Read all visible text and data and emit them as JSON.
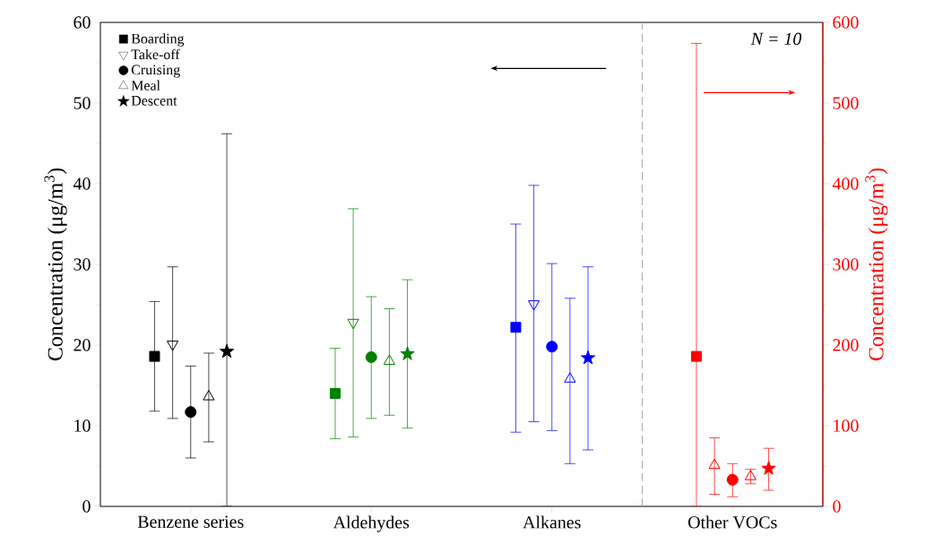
{
  "chart_data": {
    "type": "scatter",
    "categories": [
      "Benzene series",
      "Aldehydes",
      "Alkanes",
      "Other VOCs"
    ],
    "ylabel": "Concentration (μg/m$^{3}$)",
    "y2label": "Concentration (μg/m$^{3}$)",
    "ylim": [
      0,
      60
    ],
    "yticks": [
      0,
      10,
      20,
      30,
      40,
      50,
      60
    ],
    "y2lim": [
      0,
      600
    ],
    "y2ticks": [
      0,
      100,
      200,
      300,
      400,
      500,
      600
    ],
    "legend": "top left",
    "annotations": [
      "N = 10"
    ],
    "series": [
      {
        "name": "Boarding",
        "marker": "square",
        "color": "#000000",
        "colors": [
          "#000000",
          "#008000",
          "#0000ff",
          null
        ],
        "values": [
          18.6,
          14.0,
          22.2,
          null
        ],
        "errors": [
          [
            11.8,
            25.4
          ],
          [
            8.4,
            19.6
          ],
          [
            9.2,
            35.0
          ],
          null
        ]
      },
      {
        "name": "Take-off",
        "marker": "triangle-down",
        "color": "#000000",
        "colors": [
          "#000000",
          "#008000",
          "#0000ff",
          null
        ],
        "values": [
          20.1,
          22.8,
          25.1,
          null
        ],
        "errors": [
          [
            10.9,
            29.7
          ],
          [
            8.6,
            36.9
          ],
          [
            10.5,
            39.8
          ],
          null
        ]
      },
      {
        "name": "Cruising",
        "marker": "circle",
        "color": "#000000",
        "colors": [
          "#000000",
          "#008000",
          "#0000ff",
          null
        ],
        "values": [
          11.7,
          18.5,
          19.8,
          null
        ],
        "errors": [
          [
            6.0,
            17.4
          ],
          [
            10.9,
            26.0
          ],
          [
            9.4,
            30.1
          ],
          null
        ]
      },
      {
        "name": "Meal",
        "marker": "triangle",
        "color": "#000000",
        "colors": [
          "#000000",
          "#008000",
          "#0000ff",
          null
        ],
        "values": [
          13.6,
          18.0,
          15.8,
          null
        ],
        "errors": [
          [
            8.0,
            19.0
          ],
          [
            11.3,
            24.5
          ],
          [
            5.3,
            25.8
          ],
          null
        ]
      },
      {
        "name": "Descent",
        "marker": "star",
        "color": "#000000",
        "colors": [
          "#000000",
          "#008000",
          "#0000ff",
          null
        ],
        "values": [
          19.2,
          18.9,
          18.4,
          null
        ],
        "errors": [
          [
            0,
            46.2
          ],
          [
            9.7,
            28.1
          ],
          [
            7.0,
            29.7
          ],
          null
        ]
      },
      {
        "axis": "y2",
        "marker": "square",
        "color": "#ff0000",
        "values": [
          null,
          null,
          null,
          186
        ],
        "errors": [
          null,
          null,
          null,
          [
            0,
            574
          ]
        ]
      },
      {
        "axis": "y2",
        "marker": "triangle",
        "color": "#ff0000",
        "values": [
          null,
          null,
          null,
          51
        ],
        "errors": [
          null,
          null,
          null,
          [
            15,
            85
          ]
        ]
      },
      {
        "axis": "y2",
        "marker": "circle",
        "color": "#ff0000",
        "values": [
          null,
          null,
          null,
          33
        ],
        "errors": [
          null,
          null,
          null,
          [
            12,
            53
          ]
        ]
      },
      {
        "axis": "y2",
        "marker": "triangle",
        "color": "#ff0000",
        "values": [
          null,
          null,
          null,
          37
        ],
        "errors": [
          null,
          null,
          null,
          [
            28,
            46
          ]
        ]
      },
      {
        "axis": "y2",
        "marker": "star",
        "color": "#ff0000",
        "values": [
          null,
          null,
          null,
          47
        ],
        "errors": [
          null,
          null,
          null,
          [
            20,
            72
          ]
        ]
      }
    ]
  }
}
